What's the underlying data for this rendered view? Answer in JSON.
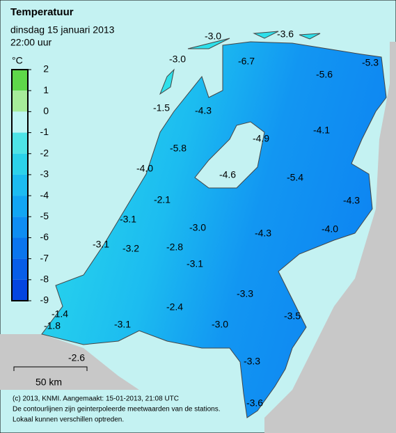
{
  "header": {
    "title": "Temperatuur",
    "date": "dinsdag 15 januari 2013",
    "time": "22:00 uur"
  },
  "legend": {
    "unit": "°C",
    "ticks": [
      2,
      1,
      0,
      -1,
      -2,
      -3,
      -4,
      -5,
      -6,
      -7,
      -8,
      -9
    ],
    "colors": [
      "#5ed84a",
      "#a6ec9a",
      "#bff6f4",
      "#4ee4e6",
      "#2cd2ea",
      "#1cbcf0",
      "#12a6f2",
      "#0e8ef2",
      "#0a76ee",
      "#075ee8",
      "#0446e0"
    ]
  },
  "stations": [
    "-3.0",
    "-3.6",
    "-3.0",
    "-6.7",
    "-5.6",
    "-5.3",
    "-1.5",
    "-4.3",
    "-4.9",
    "-4.1",
    "-5.8",
    "-4.0",
    "-4.6",
    "-5.4",
    "-4.3",
    "-2.1",
    "-3.1",
    "-3.0",
    "-4.3",
    "-4.0",
    "-3.1",
    "-3.2",
    "-2.8",
    "-3.1",
    "-3.3",
    "-2.4",
    "-1.4",
    "-3.5",
    "-3.1",
    "-3.0",
    "-1.8",
    "-2.6",
    "-3.3",
    "-3.6"
  ],
  "scale": "50 km",
  "footer": [
    "(c) 2013, KNMI. Aangemaakt: 15-01-2013, 21:08 UTC",
    "De contourlijnen zijn geinterpoleerde meetwaarden van de stations.",
    "Lokaal kunnen verschillen optreden."
  ]
}
